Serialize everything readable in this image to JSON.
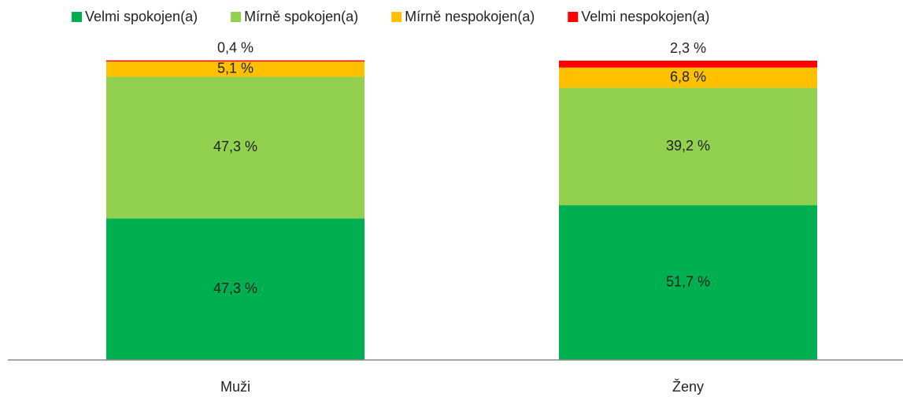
{
  "chart_data": {
    "type": "stacked_bar",
    "categories": [
      "Muži",
      "Ženy"
    ],
    "series": [
      {
        "name": "Velmi spokojen(a)",
        "color": "#00b050",
        "values": [
          47.3,
          51.7
        ],
        "value_labels": [
          "47,3 %",
          "51,7 %"
        ]
      },
      {
        "name": "Mírně spokojen(a)",
        "color": "#92d050",
        "values": [
          47.3,
          39.2
        ],
        "value_labels": [
          "47,3 %",
          "39,2 %"
        ]
      },
      {
        "name": "Mírně nespokojen(a)",
        "color": "#ffc000",
        "values": [
          5.1,
          6.8
        ],
        "value_labels": [
          "5,1 %",
          "6,8 %"
        ]
      },
      {
        "name": "Velmi nespokojen(a)",
        "color": "#ff0000",
        "values": [
          0.4,
          2.3
        ],
        "value_labels": [
          "0,4 %",
          "2,3 %"
        ]
      }
    ],
    "ylim": [
      0,
      100
    ],
    "legend": "top"
  }
}
